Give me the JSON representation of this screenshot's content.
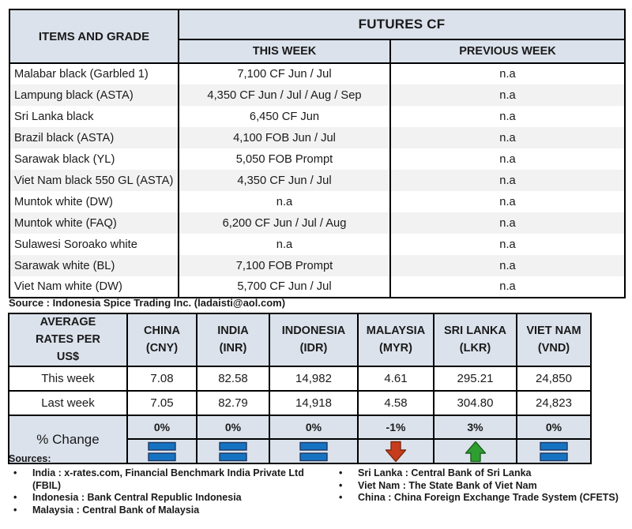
{
  "futures_table": {
    "col1_header": "ITEMS AND GRADE",
    "group_header": "FUTURES CF",
    "subheaders": [
      "THIS WEEK",
      "PREVIOUS WEEK"
    ],
    "rows": [
      {
        "item": "Malabar black (Garbled 1)",
        "this_week": "7,100 CF Jun / Jul",
        "previous_week": "n.a"
      },
      {
        "item": "Lampung black (ASTA)",
        "this_week": "4,350 CF Jun / Jul / Aug / Sep",
        "previous_week": "n.a"
      },
      {
        "item": "Sri Lanka black",
        "this_week": "6,450 CF Jun",
        "previous_week": "n.a"
      },
      {
        "item": "Brazil black (ASTA)",
        "this_week": "4,100 FOB Jun / Jul",
        "previous_week": "n.a"
      },
      {
        "item": "Sarawak black (YL)",
        "this_week": "5,050 FOB Prompt",
        "previous_week": "n.a"
      },
      {
        "item": "Viet Nam black 550 GL (ASTA)",
        "this_week": "4,350 CF Jun / Jul",
        "previous_week": "n.a"
      },
      {
        "item": "Muntok white (DW)",
        "this_week": "n.a",
        "previous_week": "n.a"
      },
      {
        "item": "Muntok white (FAQ)",
        "this_week": "6,200 CF Jun / Jul / Aug",
        "previous_week": "n.a"
      },
      {
        "item": "Sulawesi Soroako white",
        "this_week": "n.a",
        "previous_week": "n.a"
      },
      {
        "item": "Sarawak  white (BL)",
        "this_week": "7,100 FOB Prompt",
        "previous_week": "n.a"
      },
      {
        "item": "Viet Nam white (DW)",
        "this_week": "5,700 CF Jun / Jul",
        "previous_week": "n.a"
      }
    ]
  },
  "source_line": "Source : Indonesia Spice Trading Inc. (ladaisti@aol.com)",
  "rates_table": {
    "row_header": "AVERAGE RATES PER US$",
    "columns": [
      {
        "country": "CHINA",
        "currency": "(CNY)"
      },
      {
        "country": "INDIA",
        "currency": "(INR)"
      },
      {
        "country": "INDONESIA",
        "currency": "(IDR)"
      },
      {
        "country": "MALAYSIA",
        "currency": "(MYR)"
      },
      {
        "country": "SRI LANKA",
        "currency": "(LKR)"
      },
      {
        "country": "VIET NAM",
        "currency": "(VND)"
      }
    ],
    "this_week_label": "This week",
    "last_week_label": "Last week",
    "pct_change_label": "% Change",
    "this_week": [
      "7.08",
      "82.58",
      "14,982",
      "4.61",
      "295.21",
      "24,850"
    ],
    "last_week": [
      "7.05",
      "82.79",
      "14,918",
      "4.58",
      "304.80",
      "24,823"
    ],
    "pct_change": [
      "0%",
      "0%",
      "0%",
      "-1%",
      "3%",
      "0%"
    ],
    "change_direction": [
      "equal",
      "equal",
      "equal",
      "down",
      "up",
      "equal"
    ]
  },
  "sources": {
    "heading": "Sources:",
    "left": [
      "India : x-rates.com, Financial Benchmark India Private Ltd (FBIL)",
      "Indonesia : Bank Central Republic Indonesia",
      "Malaysia : Central Bank of Malaysia"
    ],
    "right": [
      "Sri Lanka : Central Bank of Sri Lanka",
      "Viet Nam : The State Bank of Viet Nam",
      "China : China Foreign Exchange Trade System (CFETS)"
    ]
  },
  "colors": {
    "header_bg": "#dbe2ec",
    "alt_row_bg": "#f2f2f2",
    "border": "#000000",
    "equal_blue": "#1573c2",
    "equal_blue_border": "#1f3864",
    "down_red": "#c63d1d",
    "down_red_border": "#7e2a0e",
    "up_green": "#2e9e30",
    "up_green_border": "#1d631d"
  }
}
